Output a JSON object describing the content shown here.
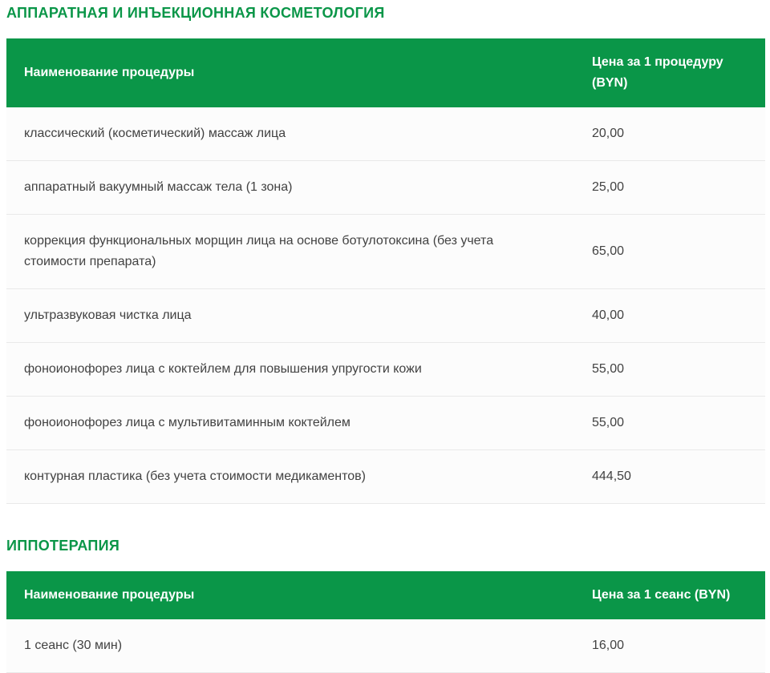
{
  "page": {
    "background_color": "#ffffff",
    "accent_green": "#0a9648",
    "row_text_color": "#424242"
  },
  "sections": [
    {
      "heading": "АППАРАТНАЯ И ИНЪЕКЦИОННАЯ КОСМЕТОЛОГИЯ",
      "table": {
        "columns": [
          "Наименование процедуры",
          "Цена за 1 процедуру (BYN)"
        ],
        "rows": [
          [
            "классический (косметический) массаж лица",
            "20,00"
          ],
          [
            "аппаратный вакуумный массаж тела (1 зона)",
            "25,00"
          ],
          [
            "коррекция функциональных морщин лица на основе ботулотоксина (без учета стоимости препарата)",
            "65,00"
          ],
          [
            "ультразвуковая чистка лица",
            "40,00"
          ],
          [
            "фоноионофорез лица с коктейлем для повышения упругости кожи",
            "55,00"
          ],
          [
            "фоноионофорез лица с мультивитаминным коктейлем",
            "55,00"
          ],
          [
            "контурная пластика (без учета стоимости медикаментов)",
            "444,50"
          ]
        ]
      }
    },
    {
      "heading": "ИППОТЕРАПИЯ",
      "table": {
        "columns": [
          "Наименование процедуры",
          "Цена за 1 сеанс (BYN)"
        ],
        "rows": [
          [
            "1 сеанс (30 мин)",
            "16,00"
          ]
        ]
      }
    }
  ]
}
